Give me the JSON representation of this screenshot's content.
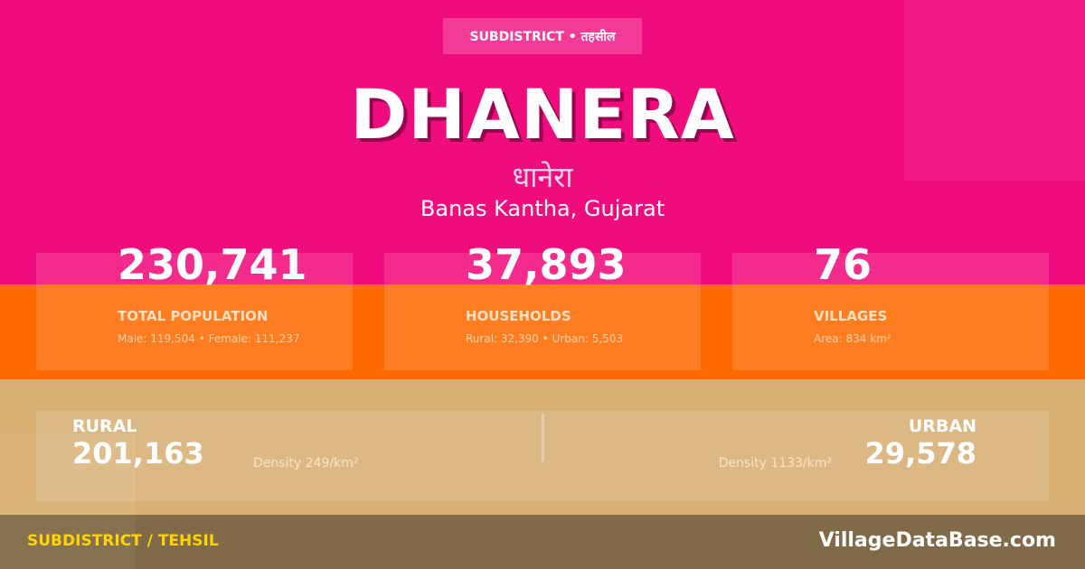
{
  "colors": {
    "top": "#f00c7c",
    "stats": "#ff6a00",
    "panel": "#d8b074",
    "footer": "#806a48",
    "accent": "#ffd400"
  },
  "badge": "SUBDISTRICT • तहसील",
  "title": "DHANERA",
  "title_hindi": "धानेरा",
  "location": "Banas Kantha, Gujarat",
  "stats": [
    {
      "value": "230,741",
      "label": "TOTAL POPULATION",
      "sub": "Male: 119,504 • Female: 111,237"
    },
    {
      "value": "37,893",
      "label": "HOUSEHOLDS",
      "sub": "Rural: 32,390 • Urban: 5,503"
    },
    {
      "value": "76",
      "label": "VILLAGES",
      "sub": "Area: 834 km²"
    }
  ],
  "rural": {
    "label": "RURAL",
    "value": "201,163",
    "density": "Density 249/km²"
  },
  "urban": {
    "label": "URBAN",
    "value": "29,578",
    "density": "Density 1133/km²"
  },
  "footer": {
    "left": "SUBDISTRICT / TEHSIL",
    "right": "VillageDataBase.com"
  }
}
